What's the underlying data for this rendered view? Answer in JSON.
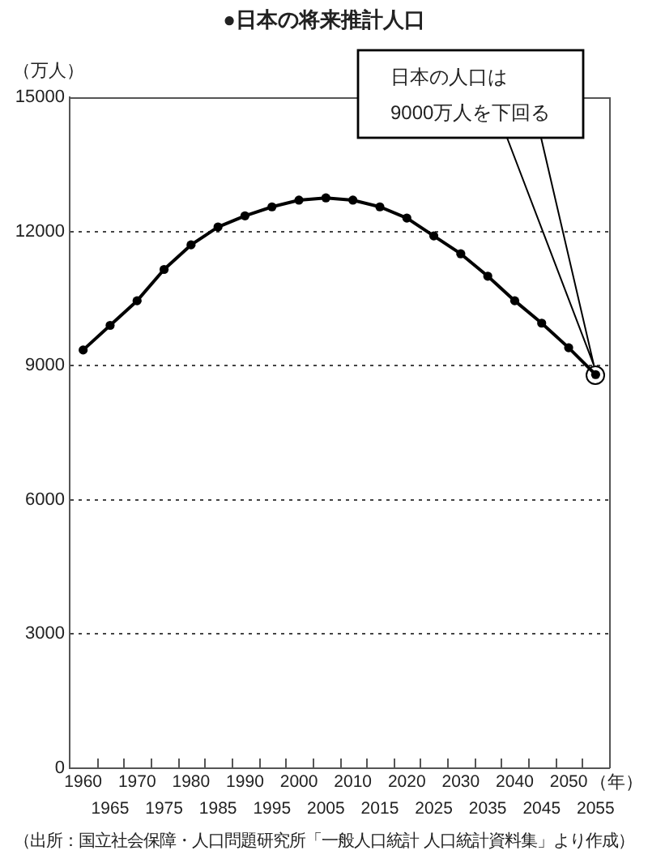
{
  "chart_data": {
    "type": "line",
    "title": "●日本の将来推計人口",
    "ylabel": "（万人）",
    "xlabel": "（年）",
    "categories": [
      "1960",
      "1965",
      "1970",
      "1975",
      "1980",
      "1985",
      "1990",
      "1995",
      "2000",
      "2005",
      "2010",
      "2015",
      "2020",
      "2025",
      "2030",
      "2035",
      "2040",
      "2045",
      "2050",
      "2055"
    ],
    "values": [
      9350,
      9900,
      10450,
      11150,
      11700,
      12100,
      12350,
      12550,
      12700,
      12750,
      12700,
      12550,
      12300,
      11900,
      11500,
      11000,
      10450,
      9950,
      9400,
      8800
    ],
    "color": "#000000",
    "marker": "circle",
    "line_style": "solid",
    "ylim": [
      0,
      15000
    ],
    "yticks": [
      0,
      3000,
      6000,
      9000,
      12000,
      15000
    ],
    "grid": "y",
    "annotations": [
      "日本の人口は\n9000万人を下回る",
      "（出所：国立社会保障・人口問題研究所「一般人口統計 人口統計資料集」より作成）"
    ]
  }
}
